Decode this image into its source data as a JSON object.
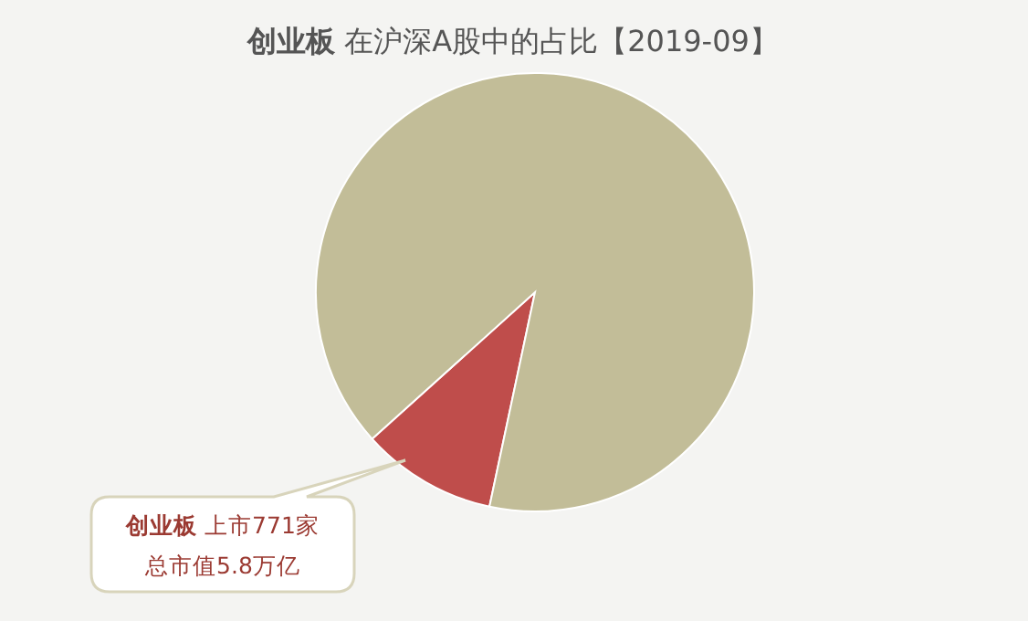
{
  "chart_data": {
    "type": "pie",
    "title": "**创业板** 在沪深A股中的占比【2019-09】",
    "categories": [
      null,
      null
    ],
    "values": [
      10,
      90
    ],
    "colors": [
      "#bf4d4b",
      "#c2bd98"
    ],
    "annotations": [
      "**创业板** 上市771家",
      "总市值5.8万亿"
    ]
  }
}
